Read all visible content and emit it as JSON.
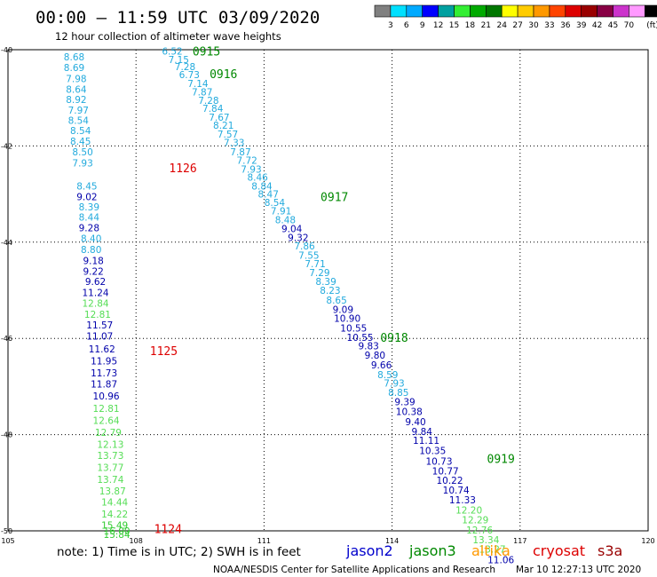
{
  "chart_data": {
    "type": "scatter",
    "title": "00:00 – 11:59 UTC 03/09/2020",
    "subtitle": "12 hour collection of altimeter wave heights",
    "xlim": [
      105,
      120
    ],
    "ylim": [
      -50,
      -40
    ],
    "x_ticks": [
      "105",
      "108",
      "111",
      "114",
      "117",
      "120"
    ],
    "y_ticks": [
      "-40",
      "-42",
      "-44",
      "-46",
      "-48",
      "-50"
    ],
    "grid": true,
    "scale_bar": {
      "labels": [
        "3",
        "6",
        "9",
        "12",
        "15",
        "18",
        "21",
        "24",
        "27",
        "30",
        "33",
        "36",
        "39",
        "42",
        "45",
        "70",
        "(ft)"
      ],
      "colors": [
        "#808080",
        "#00e0ff",
        "#00aaff",
        "#0000ff",
        "#00a0a0",
        "#33ee33",
        "#00aa00",
        "#007700",
        "#ffff00",
        "#ffcc00",
        "#ff9900",
        "#ff4400",
        "#dd0000",
        "#990000",
        "#880044",
        "#cc33cc",
        "#ff99ff",
        "#000000"
      ]
    },
    "tracks": [
      {
        "times": [
          {
            "label": "1126",
            "x": 109.1,
            "y": -42.45,
            "color": "#dd0000"
          },
          {
            "label": "1125",
            "x": 108.65,
            "y": -46.25,
            "color": "#dd0000"
          },
          {
            "label": "1124",
            "x": 108.75,
            "y": -49.95,
            "color": "#dd0000"
          }
        ],
        "points": [
          {
            "v": "8.68",
            "x": 106.55,
            "y": -40.15,
            "color": "#22aadd"
          },
          {
            "v": "8.69",
            "x": 106.55,
            "y": -40.37,
            "color": "#22aadd"
          },
          {
            "v": "7.98",
            "x": 106.6,
            "y": -40.6,
            "color": "#22aadd"
          },
          {
            "v": "8.64",
            "x": 106.6,
            "y": -40.82,
            "color": "#22aadd"
          },
          {
            "v": "8.92",
            "x": 106.6,
            "y": -41.03,
            "color": "#22aadd"
          },
          {
            "v": "7.97",
            "x": 106.65,
            "y": -41.25,
            "color": "#22aadd"
          },
          {
            "v": "8.54",
            "x": 106.65,
            "y": -41.47,
            "color": "#22aadd"
          },
          {
            "v": "8.54",
            "x": 106.7,
            "y": -41.68,
            "color": "#22aadd"
          },
          {
            "v": "8.45",
            "x": 106.7,
            "y": -41.9,
            "color": "#22aadd"
          },
          {
            "v": "8.50",
            "x": 106.75,
            "y": -42.12,
            "color": "#22aadd"
          },
          {
            "v": "7.93",
            "x": 106.75,
            "y": -42.35,
            "color": "#22aadd"
          },
          {
            "v": "8.45",
            "x": 106.85,
            "y": -42.83,
            "color": "#22aadd"
          },
          {
            "v": "9.02",
            "x": 106.85,
            "y": -43.05,
            "color": "#0000aa"
          },
          {
            "v": "8.39",
            "x": 106.9,
            "y": -43.27,
            "color": "#22aadd"
          },
          {
            "v": "8.44",
            "x": 106.9,
            "y": -43.48,
            "color": "#22aadd"
          },
          {
            "v": "9.28",
            "x": 106.9,
            "y": -43.7,
            "color": "#0000aa"
          },
          {
            "v": "8.40",
            "x": 106.95,
            "y": -43.92,
            "color": "#22aadd"
          },
          {
            "v": "8.80",
            "x": 106.95,
            "y": -44.15,
            "color": "#22aadd"
          },
          {
            "v": "9.18",
            "x": 107.0,
            "y": -44.38,
            "color": "#0000aa"
          },
          {
            "v": "9.22",
            "x": 107.0,
            "y": -44.6,
            "color": "#0000aa"
          },
          {
            "v": "9.62",
            "x": 107.05,
            "y": -44.82,
            "color": "#0000aa"
          },
          {
            "v": "11.24",
            "x": 107.05,
            "y": -45.05,
            "color": "#0000aa"
          },
          {
            "v": "12.84",
            "x": 107.05,
            "y": -45.27,
            "color": "#55dd55"
          },
          {
            "v": "12.81",
            "x": 107.1,
            "y": -45.5,
            "color": "#55dd55"
          },
          {
            "v": "11.57",
            "x": 107.15,
            "y": -45.72,
            "color": "#0000aa"
          },
          {
            "v": "11.07",
            "x": 107.15,
            "y": -45.95,
            "color": "#0000aa"
          },
          {
            "v": "11.62",
            "x": 107.2,
            "y": -46.22,
            "color": "#0000aa"
          },
          {
            "v": "11.95",
            "x": 107.25,
            "y": -46.47,
            "color": "#0000aa"
          },
          {
            "v": "11.73",
            "x": 107.25,
            "y": -46.72,
            "color": "#0000aa"
          },
          {
            "v": "11.87",
            "x": 107.25,
            "y": -46.95,
            "color": "#0000aa"
          },
          {
            "v": "10.96",
            "x": 107.3,
            "y": -47.2,
            "color": "#0000aa"
          },
          {
            "v": "12.81",
            "x": 107.3,
            "y": -47.45,
            "color": "#55dd55"
          },
          {
            "v": "12.64",
            "x": 107.3,
            "y": -47.7,
            "color": "#55dd55"
          },
          {
            "v": "12.79",
            "x": 107.35,
            "y": -47.95,
            "color": "#55dd55"
          },
          {
            "v": "12.13",
            "x": 107.4,
            "y": -48.2,
            "color": "#55dd55"
          },
          {
            "v": "13.73",
            "x": 107.4,
            "y": -48.43,
            "color": "#55dd55"
          },
          {
            "v": "13.77",
            "x": 107.4,
            "y": -48.68,
            "color": "#55dd55"
          },
          {
            "v": "13.74",
            "x": 107.4,
            "y": -48.93,
            "color": "#55dd55"
          },
          {
            "v": "13.87",
            "x": 107.45,
            "y": -49.17,
            "color": "#55dd55"
          },
          {
            "v": "14.44",
            "x": 107.5,
            "y": -49.4,
            "color": "#55dd55"
          },
          {
            "v": "14.22",
            "x": 107.5,
            "y": -49.65,
            "color": "#55dd55"
          },
          {
            "v": "15.49",
            "x": 107.5,
            "y": -49.88,
            "color": "#33cc33"
          },
          {
            "v": "16.00",
            "x": 107.55,
            "y": -50.0,
            "color": "#33cc33"
          },
          {
            "v": "15.84",
            "x": 107.55,
            "y": -50.07,
            "color": "#33cc33"
          }
        ]
      },
      {
        "times": [
          {
            "label": "0915",
            "x": 109.65,
            "y": -40.03,
            "color": "#008800"
          },
          {
            "label": "0916",
            "x": 110.05,
            "y": -40.5,
            "color": "#008800"
          },
          {
            "label": "0917",
            "x": 112.65,
            "y": -43.05,
            "color": "#008800"
          },
          {
            "label": "0918",
            "x": 114.05,
            "y": -45.98,
            "color": "#008800"
          },
          {
            "label": "0919",
            "x": 116.55,
            "y": -48.5,
            "color": "#008800"
          }
        ],
        "points": [
          {
            "v": "6.52",
            "x": 108.85,
            "y": -40.03,
            "color": "#22aadd"
          },
          {
            "v": "7.15",
            "x": 109.0,
            "y": -40.2,
            "color": "#22aadd"
          },
          {
            "v": "7.28",
            "x": 109.15,
            "y": -40.35,
            "color": "#22aadd"
          },
          {
            "v": "6.73",
            "x": 109.25,
            "y": -40.52,
            "color": "#22aadd"
          },
          {
            "v": "7.14",
            "x": 109.45,
            "y": -40.7,
            "color": "#22aadd"
          },
          {
            "v": "7.87",
            "x": 109.55,
            "y": -40.88,
            "color": "#22aadd"
          },
          {
            "v": "7.28",
            "x": 109.7,
            "y": -41.05,
            "color": "#22aadd"
          },
          {
            "v": "7.84",
            "x": 109.8,
            "y": -41.22,
            "color": "#22aadd"
          },
          {
            "v": "7.67",
            "x": 109.95,
            "y": -41.4,
            "color": "#22aadd"
          },
          {
            "v": "8.21",
            "x": 110.05,
            "y": -41.57,
            "color": "#22aadd"
          },
          {
            "v": "7.57",
            "x": 110.15,
            "y": -41.75,
            "color": "#22aadd"
          },
          {
            "v": "7.33",
            "x": 110.3,
            "y": -41.93,
            "color": "#22aadd"
          },
          {
            "v": "7.87",
            "x": 110.45,
            "y": -42.12,
            "color": "#22aadd"
          },
          {
            "v": "7.72",
            "x": 110.6,
            "y": -42.3,
            "color": "#22aadd"
          },
          {
            "v": "7.93",
            "x": 110.7,
            "y": -42.48,
            "color": "#22aadd"
          },
          {
            "v": "8.46",
            "x": 110.85,
            "y": -42.65,
            "color": "#22aadd"
          },
          {
            "v": "8.84",
            "x": 110.95,
            "y": -42.83,
            "color": "#22aadd"
          },
          {
            "v": "8.47",
            "x": 111.1,
            "y": -43.0,
            "color": "#22aadd"
          },
          {
            "v": "8.54",
            "x": 111.25,
            "y": -43.17,
            "color": "#22aadd"
          },
          {
            "v": "7.91",
            "x": 111.4,
            "y": -43.35,
            "color": "#22aadd"
          },
          {
            "v": "8.48",
            "x": 111.5,
            "y": -43.53,
            "color": "#22aadd"
          },
          {
            "v": "9.04",
            "x": 111.65,
            "y": -43.72,
            "color": "#0000aa"
          },
          {
            "v": "9.32",
            "x": 111.8,
            "y": -43.9,
            "color": "#0000aa"
          },
          {
            "v": "7.86",
            "x": 111.95,
            "y": -44.08,
            "color": "#22aadd"
          },
          {
            "v": "7.55",
            "x": 112.05,
            "y": -44.27,
            "color": "#22aadd"
          },
          {
            "v": "7.71",
            "x": 112.2,
            "y": -44.45,
            "color": "#22aadd"
          },
          {
            "v": "7.29",
            "x": 112.3,
            "y": -44.63,
            "color": "#22aadd"
          },
          {
            "v": "8.39",
            "x": 112.45,
            "y": -44.82,
            "color": "#22aadd"
          },
          {
            "v": "8.23",
            "x": 112.55,
            "y": -45.0,
            "color": "#22aadd"
          },
          {
            "v": "8.65",
            "x": 112.7,
            "y": -45.2,
            "color": "#22aadd"
          },
          {
            "v": "9.09",
            "x": 112.85,
            "y": -45.4,
            "color": "#0000aa"
          },
          {
            "v": "10.90",
            "x": 112.95,
            "y": -45.58,
            "color": "#0000aa"
          },
          {
            "v": "10.55",
            "x": 113.1,
            "y": -45.78,
            "color": "#0000aa"
          },
          {
            "v": "10.55",
            "x": 113.25,
            "y": -45.98,
            "color": "#0000aa"
          },
          {
            "v": "9.83",
            "x": 113.45,
            "y": -46.15,
            "color": "#0000aa"
          },
          {
            "v": "9.80",
            "x": 113.6,
            "y": -46.35,
            "color": "#0000aa"
          },
          {
            "v": "9.66",
            "x": 113.75,
            "y": -46.55,
            "color": "#0000aa"
          },
          {
            "v": "8.59",
            "x": 113.9,
            "y": -46.75,
            "color": "#22aadd"
          },
          {
            "v": "7.93",
            "x": 114.05,
            "y": -46.93,
            "color": "#22aadd"
          },
          {
            "v": "8.85",
            "x": 114.15,
            "y": -47.12,
            "color": "#22aadd"
          },
          {
            "v": "9.39",
            "x": 114.3,
            "y": -47.32,
            "color": "#0000aa"
          },
          {
            "v": "10.38",
            "x": 114.4,
            "y": -47.52,
            "color": "#0000aa"
          },
          {
            "v": "9.40",
            "x": 114.55,
            "y": -47.73,
            "color": "#0000aa"
          },
          {
            "v": "9.84",
            "x": 114.7,
            "y": -47.93,
            "color": "#0000aa"
          },
          {
            "v": "11.11",
            "x": 114.8,
            "y": -48.12,
            "color": "#0000aa"
          },
          {
            "v": "10.35",
            "x": 114.95,
            "y": -48.33,
            "color": "#0000aa"
          },
          {
            "v": "10.73",
            "x": 115.1,
            "y": -48.55,
            "color": "#0000aa"
          },
          {
            "v": "10.77",
            "x": 115.25,
            "y": -48.75,
            "color": "#0000aa"
          },
          {
            "v": "10.22",
            "x": 115.35,
            "y": -48.95,
            "color": "#0000aa"
          },
          {
            "v": "10.74",
            "x": 115.5,
            "y": -49.15,
            "color": "#0000aa"
          },
          {
            "v": "11.33",
            "x": 115.65,
            "y": -49.35,
            "color": "#0000aa"
          },
          {
            "v": "12.20",
            "x": 115.8,
            "y": -49.57,
            "color": "#55dd55"
          },
          {
            "v": "12.29",
            "x": 115.95,
            "y": -49.77,
            "color": "#55dd55"
          },
          {
            "v": "12.76",
            "x": 116.05,
            "y": -49.98,
            "color": "#55dd55"
          },
          {
            "v": "13.34",
            "x": 116.2,
            "y": -50.18,
            "color": "#55dd55"
          },
          {
            "v": "13.27",
            "x": 116.35,
            "y": -50.38,
            "color": "#55dd55"
          },
          {
            "v": "11.06",
            "x": 116.55,
            "y": -50.6,
            "color": "#0000aa"
          }
        ]
      }
    ]
  },
  "footer": {
    "note": "note: 1) Time is in UTC; 2) SWH is in feet",
    "satellites": [
      {
        "name": "jason2",
        "color": "#0000cc"
      },
      {
        "name": "jason3",
        "color": "#008800"
      },
      {
        "name": "altika",
        "color": "#ff9900"
      },
      {
        "name": "cryosat",
        "color": "#dd0000"
      },
      {
        "name": "s3a",
        "color": "#990000"
      }
    ],
    "credit": "NOAA/NESDIS Center for Satellite Applications and Research",
    "timestamp": "Mar 10 12:27:13 UTC 2020"
  }
}
